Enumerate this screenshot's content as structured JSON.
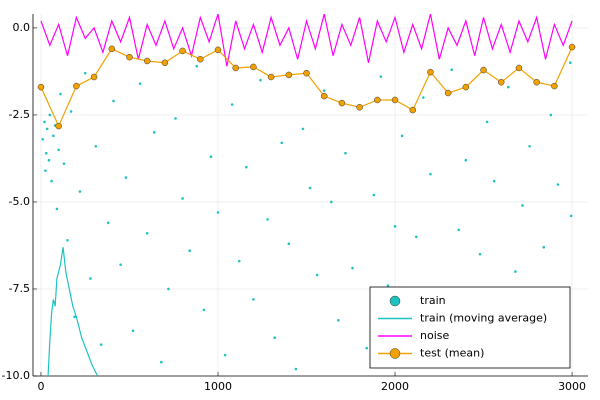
{
  "chart_data": {
    "type": "line",
    "xlim": [
      -45,
      3090
    ],
    "xticks": [
      0,
      1000,
      2000,
      3000
    ],
    "ylim": [
      -10,
      0.4
    ],
    "yticks": [
      {
        "value": 0,
        "label": "0.0"
      },
      {
        "value": -2.5,
        "label": "-2.5"
      },
      {
        "value": -5,
        "label": "-5.0"
      },
      {
        "value": -7.5,
        "label": "-7.5"
      },
      {
        "value": -10,
        "label": "-10.0"
      }
    ],
    "grid": true,
    "legend": "bottomright",
    "series": [
      {
        "name": "train",
        "style": "scatter",
        "color": "#1fc2c2",
        "x": [
          10,
          20,
          25,
          30,
          35,
          45,
          50,
          60,
          70,
          80,
          90,
          100,
          110,
          130,
          150,
          170,
          190,
          220,
          250,
          280,
          310,
          340,
          380,
          410,
          450,
          480,
          520,
          560,
          600,
          640,
          680,
          720,
          760,
          800,
          840,
          880,
          920,
          960,
          1000,
          1040,
          1080,
          1120,
          1160,
          1200,
          1240,
          1280,
          1320,
          1360,
          1400,
          1440,
          1480,
          1520,
          1560,
          1600,
          1640,
          1680,
          1720,
          1760,
          1800,
          1840,
          1880,
          1920,
          1960,
          2000,
          2040,
          2080,
          2120,
          2160,
          2200,
          2240,
          2280,
          2320,
          2360,
          2400,
          2440,
          2480,
          2520,
          2560,
          2600,
          2640,
          2680,
          2720,
          2760,
          2800,
          2840,
          2880,
          2920,
          2960,
          2990,
          2995
        ],
        "values": [
          -3.2,
          -2.7,
          -4.1,
          -3.6,
          -2.9,
          -3.8,
          -2.5,
          -4.4,
          -3.1,
          -2.8,
          -5.2,
          -3.5,
          -1.9,
          -3.9,
          -6.1,
          -2.4,
          -8.3,
          -4.7,
          -1.3,
          -7.2,
          -3.4,
          -9.1,
          -5.6,
          -2.1,
          -6.8,
          -4.3,
          -8.7,
          -1.6,
          -5.9,
          -3.0,
          -9.6,
          -7.5,
          -2.6,
          -4.9,
          -6.4,
          -1.1,
          -8.1,
          -3.7,
          -5.3,
          -9.4,
          -2.2,
          -6.7,
          -4.0,
          -7.8,
          -1.5,
          -5.5,
          -8.9,
          -3.3,
          -6.2,
          -9.8,
          -2.9,
          -4.6,
          -7.1,
          -1.8,
          -5.0,
          -8.4,
          -3.6,
          -6.9,
          -2.3,
          -9.2,
          -4.8,
          -1.4,
          -7.4,
          -5.7,
          -3.1,
          -8.6,
          -6.0,
          -2.0,
          -4.2,
          -9.5,
          -7.7,
          -1.2,
          -5.8,
          -3.8,
          -8.0,
          -6.5,
          -2.7,
          -4.4,
          -9.0,
          -1.7,
          -7.0,
          -5.1,
          -3.4,
          -8.8,
          -6.3,
          -2.5,
          -4.5,
          -7.6,
          -1.0,
          -5.4
        ]
      },
      {
        "name": "train (moving average)",
        "style": "line",
        "color": "#1fc2c2",
        "x": [
          40,
          50,
          60,
          70,
          80,
          90,
          100,
          110,
          125,
          140,
          160,
          180,
          200,
          230,
          260,
          290,
          320
        ],
        "values": [
          -10,
          -9,
          -8.2,
          -7.8,
          -8.0,
          -7.2,
          -7.0,
          -6.8,
          -6.3,
          -7.0,
          -7.5,
          -8.0,
          -8.3,
          -8.9,
          -9.3,
          -9.7,
          -10
        ]
      },
      {
        "name": "noise",
        "style": "line",
        "color": "#ff00ff",
        "x": [
          0,
          50,
          100,
          150,
          200,
          250,
          300,
          350,
          400,
          450,
          500,
          550,
          600,
          650,
          700,
          750,
          800,
          850,
          900,
          950,
          1000,
          1050,
          1100,
          1150,
          1200,
          1250,
          1300,
          1350,
          1400,
          1450,
          1500,
          1550,
          1600,
          1650,
          1700,
          1750,
          1800,
          1850,
          1900,
          1950,
          2000,
          2050,
          2100,
          2150,
          2200,
          2250,
          2300,
          2350,
          2400,
          2450,
          2500,
          2550,
          2600,
          2650,
          2700,
          2750,
          2800,
          2850,
          2900,
          2950,
          3000
        ],
        "values": [
          0.2,
          -0.5,
          0.1,
          -0.8,
          0.3,
          -0.3,
          0.0,
          -0.7,
          0.2,
          -0.4,
          0.3,
          -0.9,
          0.1,
          -0.5,
          0.2,
          -0.6,
          0.0,
          -0.8,
          0.3,
          -0.4,
          0.4,
          -1.1,
          0.2,
          -0.6,
          0.1,
          -0.7,
          0.3,
          -0.5,
          0.0,
          -0.9,
          0.2,
          -0.6,
          0.4,
          -0.8,
          0.1,
          -0.5,
          0.3,
          -1.0,
          0.2,
          -0.4,
          0.3,
          -0.7,
          0.1,
          -0.6,
          0.4,
          -0.9,
          0.0,
          -0.5,
          0.2,
          -0.8,
          0.3,
          -0.6,
          0.1,
          -0.7,
          0.2,
          -0.4,
          0.3,
          -0.9,
          0.1,
          -0.5,
          0.2
        ]
      },
      {
        "name": "test (mean)",
        "style": "linemarker",
        "color": "#f2a100",
        "x": [
          0,
          100,
          200,
          300,
          400,
          500,
          600,
          700,
          800,
          900,
          1000,
          1100,
          1200,
          1300,
          1400,
          1500,
          1600,
          1700,
          1800,
          1900,
          2000,
          2100,
          2200,
          2300,
          2400,
          2500,
          2600,
          2700,
          2800,
          2900,
          3000
        ],
        "values": [
          -1.7,
          -2.82,
          -1.67,
          -1.41,
          -0.6,
          -0.84,
          -0.95,
          -1.0,
          -0.66,
          -0.9,
          -0.63,
          -1.15,
          -1.12,
          -1.41,
          -1.35,
          -1.3,
          -1.96,
          -2.16,
          -2.28,
          -2.07,
          -2.07,
          -2.36,
          -1.27,
          -1.87,
          -1.7,
          -1.21,
          -1.56,
          -1.15,
          -1.56,
          -1.67,
          -0.55
        ]
      }
    ]
  }
}
